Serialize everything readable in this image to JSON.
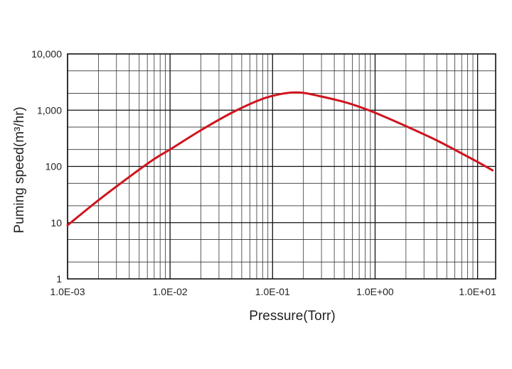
{
  "chart_data": {
    "type": "line",
    "xscale": "log",
    "yscale": "log",
    "xlim": [
      0.001,
      15
    ],
    "ylim": [
      1,
      10000
    ],
    "xlabel": "Pressure(Torr)",
    "ylabel": "Puming speed(m³/hr)",
    "x_tick_labels": [
      "1.0E-03",
      "1.0E-02",
      "1.0E-01",
      "1.0E+00",
      "1.0E+01"
    ],
    "y_tick_labels": [
      "1",
      "10",
      "100",
      "1,000",
      "10,000"
    ],
    "grid": true,
    "legend": "none",
    "series": [
      {
        "color": "#d0141e",
        "x": [
          0.001,
          0.002,
          0.004,
          0.007,
          0.01,
          0.02,
          0.04,
          0.07,
          0.1,
          0.15,
          0.2,
          0.3,
          0.5,
          0.7,
          1.0,
          2.0,
          4.0,
          7.0,
          10.0,
          14.0
        ],
        "y": [
          9,
          25,
          65,
          135,
          200,
          440,
          900,
          1450,
          1800,
          2050,
          2030,
          1750,
          1400,
          1150,
          900,
          520,
          290,
          170,
          120,
          85
        ]
      }
    ]
  }
}
